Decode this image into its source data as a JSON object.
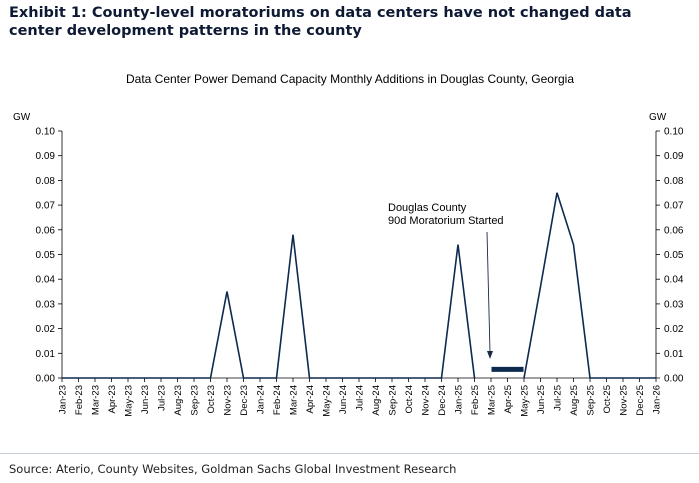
{
  "exhibit_title": "Exhibit 1: County-level moratoriums on data centers have not changed data center development patterns in the county",
  "source": "Source: Aterio, County Websites, Goldman Sachs Global Investment Research",
  "chart_data": {
    "type": "line",
    "title": "Data Center Power Demand Capacity Monthly Additions in Douglas County, Georgia",
    "ylabel_left": "GW",
    "ylabel_right": "GW",
    "ylim": [
      0,
      0.1
    ],
    "yticks": [
      "0.00",
      "0.01",
      "0.02",
      "0.03",
      "0.04",
      "0.05",
      "0.06",
      "0.07",
      "0.08",
      "0.09",
      "0.10"
    ],
    "categories": [
      "Jan-23",
      "Feb-23",
      "Mar-23",
      "Apr-23",
      "May-23",
      "Jun-23",
      "Jul-23",
      "Aug-23",
      "Sep-23",
      "Oct-23",
      "Nov-23",
      "Dec-23",
      "Jan-24",
      "Feb-24",
      "Mar-24",
      "Apr-24",
      "May-24",
      "Jun-24",
      "Jul-24",
      "Aug-24",
      "Sep-24",
      "Oct-24",
      "Nov-24",
      "Dec-24",
      "Jan-25",
      "Feb-25",
      "Mar-25",
      "Apr-25",
      "May-25",
      "Jun-25",
      "Jul-25",
      "Aug-25",
      "Sep-25",
      "Oct-25",
      "Nov-25",
      "Dec-25",
      "Jan-26"
    ],
    "series": [
      {
        "name": "Monthly Additions",
        "color": "#0d2a4f",
        "values": [
          0,
          0,
          0,
          0,
          0,
          0,
          0,
          0,
          0,
          0,
          0.035,
          0,
          0,
          0,
          0.058,
          0,
          0,
          0,
          0,
          0,
          0,
          0,
          0,
          0,
          0.054,
          0,
          null,
          null,
          0,
          0.037,
          0.075,
          0.054,
          0,
          0,
          0,
          0,
          0
        ]
      }
    ],
    "annotation": {
      "lines": [
        "Douglas County",
        "90d Moratorium Started"
      ],
      "arrow_to_category": "Mar-25",
      "moratorium_start": "Mar-25",
      "moratorium_end": "May-25",
      "band_value": 0.0035,
      "color": "#0d2a4f"
    }
  }
}
